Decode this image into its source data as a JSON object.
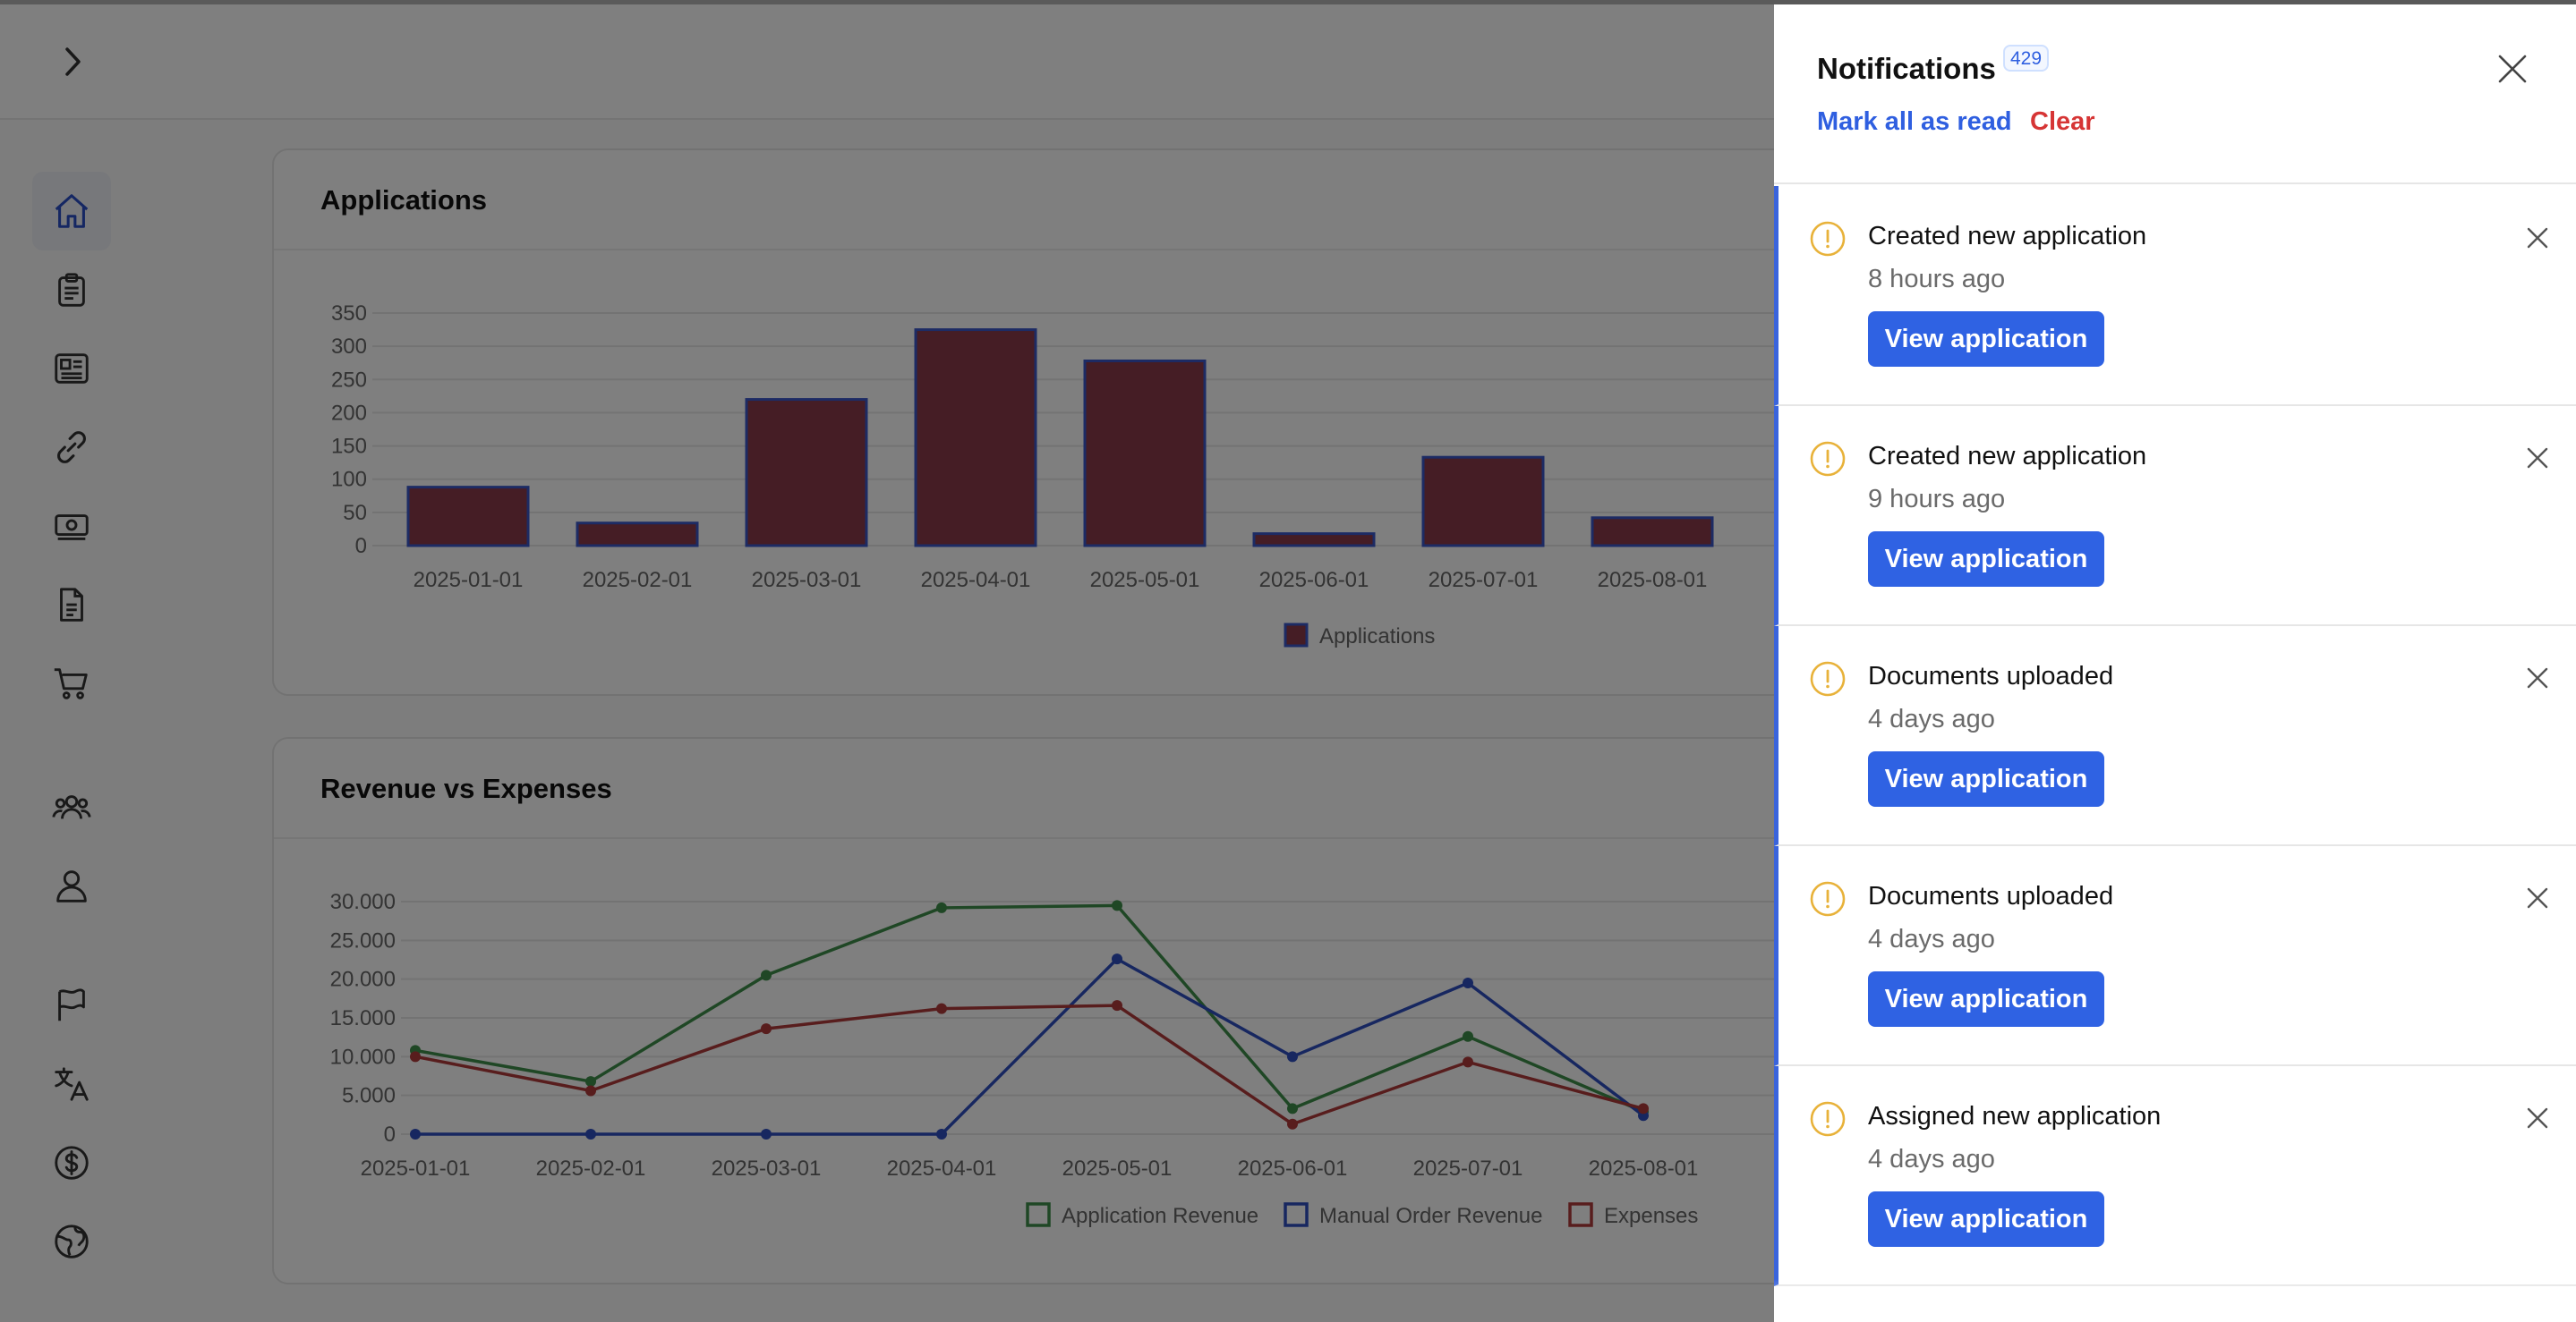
{
  "notifications": {
    "title": "Notifications",
    "count": "429",
    "mark_all_label": "Mark all as read",
    "clear_label": "Clear",
    "items": [
      {
        "title": "Created new application",
        "time": "8 hours ago",
        "action": "View application"
      },
      {
        "title": "Created new application",
        "time": "9 hours ago",
        "action": "View application"
      },
      {
        "title": "Documents uploaded",
        "time": "4 days ago",
        "action": "View application"
      },
      {
        "title": "Documents uploaded",
        "time": "4 days ago",
        "action": "View application"
      },
      {
        "title": "Assigned new application",
        "time": "4 days ago",
        "action": "View application"
      }
    ]
  },
  "sidebar": {
    "items": [
      {
        "icon": "home-icon",
        "active": true
      },
      {
        "icon": "clipboard-icon"
      },
      {
        "icon": "newspaper-icon"
      },
      {
        "icon": "link-icon"
      },
      {
        "icon": "banknote-icon"
      },
      {
        "icon": "document-icon"
      },
      {
        "icon": "cart-icon"
      },
      {
        "icon": "users-icon"
      },
      {
        "icon": "user-icon"
      },
      {
        "icon": "flag-icon"
      },
      {
        "icon": "translate-icon"
      },
      {
        "icon": "dollar-icon"
      },
      {
        "icon": "globe-icon"
      }
    ]
  },
  "colors": {
    "accent": "#2f62e3",
    "danger": "#d63535",
    "warning_icon": "#e8b23a",
    "bar_fill": "#8b3a4a",
    "bar_stroke": "#3a56c8",
    "series_green": "#3f8f4a",
    "series_blue": "#2f4fc0",
    "series_red": "#b03a3a"
  },
  "chart_data": [
    {
      "type": "bar",
      "title": "Applications",
      "categories": [
        "2025-01-01",
        "2025-02-01",
        "2025-03-01",
        "2025-04-01",
        "2025-05-01",
        "2025-06-01",
        "2025-07-01",
        "2025-08-01"
      ],
      "series": [
        {
          "name": "Applications",
          "values": [
            88,
            34,
            220,
            325,
            278,
            18,
            133,
            42
          ]
        }
      ],
      "yticks": [
        "0",
        "50",
        "100",
        "150",
        "200",
        "250",
        "300",
        "350"
      ],
      "ylim": [
        0,
        350
      ],
      "grid": true,
      "legend": "bottom-center"
    },
    {
      "type": "line",
      "title": "Revenue vs Expenses",
      "categories": [
        "2025-01-01",
        "2025-02-01",
        "2025-03-01",
        "2025-04-01",
        "2025-05-01",
        "2025-06-01",
        "2025-07-01",
        "2025-08-01"
      ],
      "series": [
        {
          "name": "Application Revenue",
          "values": [
            10800,
            6800,
            20500,
            29200,
            29500,
            3300,
            12600,
            2900
          ]
        },
        {
          "name": "Manual Order Revenue",
          "values": [
            0,
            0,
            0,
            0,
            22600,
            10000,
            19500,
            2400
          ]
        },
        {
          "name": "Expenses",
          "values": [
            10000,
            5600,
            13600,
            16200,
            16600,
            1300,
            9300,
            3300
          ]
        }
      ],
      "yticks": [
        "0",
        "5.000",
        "10.000",
        "15.000",
        "20.000",
        "25.000",
        "30.000"
      ],
      "ylim": [
        0,
        30000
      ],
      "grid": true,
      "legend": "bottom-center"
    }
  ]
}
